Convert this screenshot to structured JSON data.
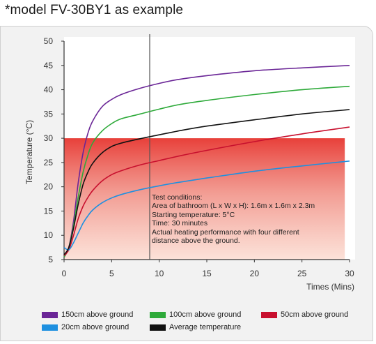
{
  "heading": "*model FV-30BY1 as example",
  "chart_data": {
    "type": "line",
    "xlabel": "Times (Mins)",
    "ylabel": "Temperature (°C)",
    "xlim": [
      0,
      30
    ],
    "ylim": [
      5,
      50
    ],
    "xticks": [
      0,
      5,
      10,
      15,
      20,
      25,
      30
    ],
    "yticks": [
      5,
      10,
      15,
      20,
      25,
      30,
      35,
      40,
      45,
      50
    ],
    "grid": false,
    "legend_position": "bottom",
    "reference_line_x": 9,
    "highlight_band": {
      "y_from": 5,
      "y_to": 30,
      "x_from": 0,
      "x_to": 29.5,
      "color": "#e8403a"
    },
    "series": [
      {
        "name": "150cm above ground",
        "color": "#6a2596",
        "x": [
          0,
          0.5,
          1,
          1.5,
          2,
          2.5,
          3,
          4,
          5,
          6,
          8,
          10,
          12,
          15,
          20,
          25,
          30
        ],
        "y": [
          5.5,
          7.5,
          13,
          21,
          27,
          31,
          33.5,
          36.5,
          38,
          39,
          40.3,
          41.3,
          42.1,
          42.9,
          43.9,
          44.5,
          45
        ]
      },
      {
        "name": "100cm above ground",
        "color": "#2eaa3a",
        "x": [
          0,
          0.5,
          1,
          1.5,
          2,
          2.5,
          3,
          4,
          5,
          6,
          8,
          10,
          12,
          15,
          20,
          25,
          30
        ],
        "y": [
          5.5,
          7.5,
          12,
          18,
          23,
          26.5,
          29,
          31.5,
          33,
          34,
          35,
          36,
          36.9,
          37.8,
          39,
          40,
          40.7
        ]
      },
      {
        "name": "50cm above ground",
        "color": "#c8102e",
        "x": [
          0,
          0.5,
          1,
          1.5,
          2,
          2.5,
          3,
          4,
          5,
          6,
          8,
          10,
          12,
          15,
          20,
          25,
          30
        ],
        "y": [
          5.8,
          7,
          10,
          13.5,
          16,
          17.8,
          19.2,
          21.2,
          22.5,
          23.3,
          24.5,
          25.4,
          26.3,
          27.5,
          29.3,
          30.9,
          32.3
        ]
      },
      {
        "name": "20cm above ground",
        "color": "#1e90e0",
        "x": [
          0,
          0.5,
          1,
          1.5,
          2,
          2.5,
          3,
          4,
          5,
          6,
          8,
          10,
          12,
          15,
          20,
          25,
          30
        ],
        "y": [
          7.5,
          7,
          8.5,
          10.5,
          12.5,
          14,
          15.2,
          16.7,
          17.7,
          18.4,
          19.4,
          20.2,
          20.9,
          21.8,
          23.2,
          24.3,
          25.3
        ]
      },
      {
        "name": "Average temperature",
        "color": "#111111",
        "x": [
          0,
          0.5,
          1,
          1.5,
          2,
          2.5,
          3,
          4,
          5,
          6,
          8,
          10,
          12,
          15,
          20,
          25,
          30
        ],
        "y": [
          6,
          7.5,
          11.5,
          16.5,
          20.5,
          23,
          24.8,
          27,
          28.3,
          29,
          29.9,
          30.7,
          31.5,
          32.5,
          33.8,
          35,
          35.9
        ]
      }
    ]
  },
  "conditions": [
    "Test conditions:",
    "Area of bathroom (L x W x H): 1.6m x 1.6m x 2.3m",
    "Starting temperature: 5°C",
    "Time: 30 minutes",
    "Actual heating performance with four different",
    "distance above the ground."
  ],
  "legend": [
    {
      "label": "150cm above ground",
      "color": "#6a2596"
    },
    {
      "label": "100cm above ground",
      "color": "#2eaa3a"
    },
    {
      "label": "50cm above ground",
      "color": "#c8102e"
    },
    {
      "label": "20cm above ground",
      "color": "#1e90e0"
    },
    {
      "label": "Average temperature",
      "color": "#111111"
    }
  ]
}
